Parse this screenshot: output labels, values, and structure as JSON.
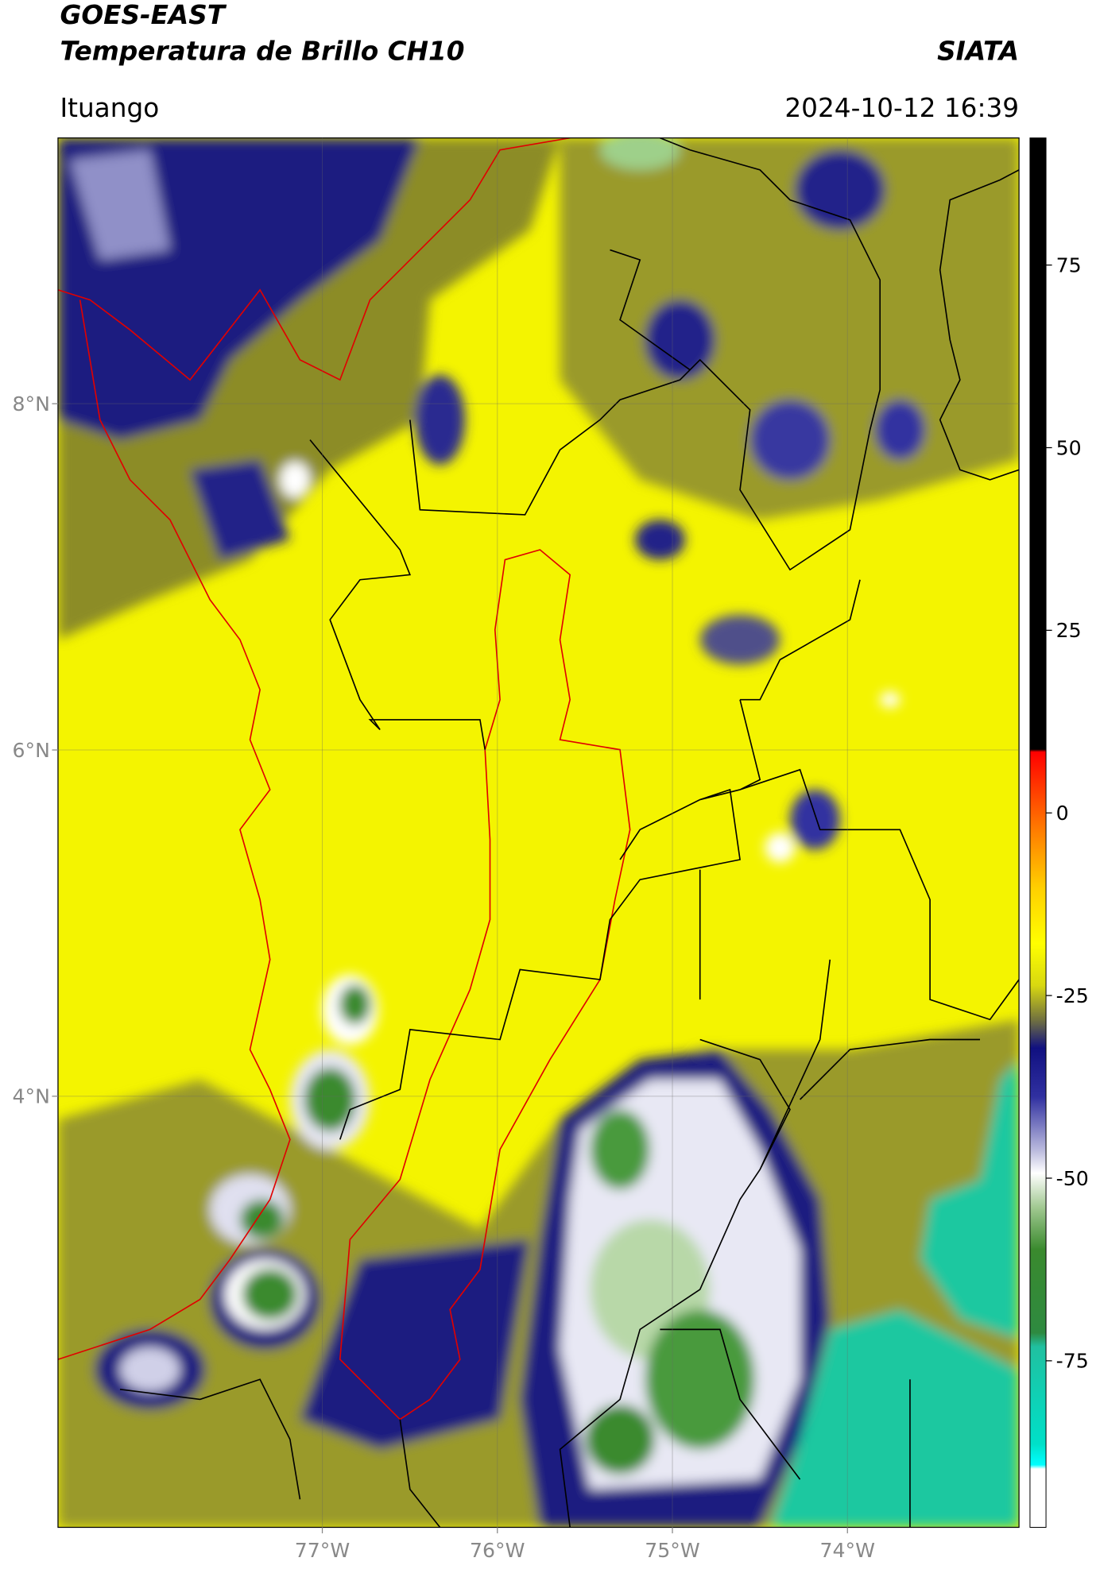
{
  "header": {
    "title": "GOES-EAST",
    "subtitle": "Temperatura de Brillo CH10",
    "source": "SIATA",
    "location": "Ituango",
    "datetime": "2024-10-12 16:39"
  },
  "map": {
    "xlim": [
      -78.51,
      -73.02
    ],
    "ylim": [
      1.51,
      9.535
    ],
    "xticks": [
      {
        "value": -77,
        "label": "77°W"
      },
      {
        "value": -76,
        "label": "76°W"
      },
      {
        "value": -75,
        "label": "75°W"
      },
      {
        "value": -74,
        "label": "74°W"
      }
    ],
    "yticks": [
      {
        "value": 8,
        "label": "8°N"
      },
      {
        "value": 6,
        "label": "6°N"
      },
      {
        "value": 4,
        "label": "4°N"
      }
    ],
    "grid": true
  },
  "colorbar": {
    "lim": [
      -97.8,
      92.4
    ],
    "ticks": [
      75,
      50,
      25,
      0,
      -25,
      -50,
      -75
    ]
  }
}
